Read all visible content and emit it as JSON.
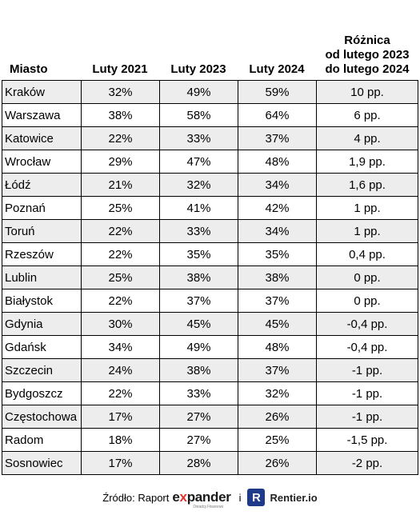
{
  "header": {
    "city": "Miasto",
    "col_2021": "Luty 2021",
    "col_2023": "Luty 2023",
    "col_2024": "Luty 2024",
    "diff_line1": "Różnica",
    "diff_line2": "od lutego 2023",
    "diff_line3": "do lutego 2024"
  },
  "rows": [
    {
      "city": "Kraków",
      "v2021": "32%",
      "v2023": "49%",
      "v2024": "59%",
      "diff": "10 pp."
    },
    {
      "city": "Warszawa",
      "v2021": "38%",
      "v2023": "58%",
      "v2024": "64%",
      "diff": "6 pp."
    },
    {
      "city": "Katowice",
      "v2021": "22%",
      "v2023": "33%",
      "v2024": "37%",
      "diff": "4 pp."
    },
    {
      "city": "Wrocław",
      "v2021": "29%",
      "v2023": "47%",
      "v2024": "48%",
      "diff": "1,9 pp."
    },
    {
      "city": "Łódź",
      "v2021": "21%",
      "v2023": "32%",
      "v2024": "34%",
      "diff": "1,6 pp."
    },
    {
      "city": "Poznań",
      "v2021": "25%",
      "v2023": "41%",
      "v2024": "42%",
      "diff": "1 pp."
    },
    {
      "city": "Toruń",
      "v2021": "22%",
      "v2023": "33%",
      "v2024": "34%",
      "diff": "1 pp."
    },
    {
      "city": "Rzeszów",
      "v2021": "22%",
      "v2023": "35%",
      "v2024": "35%",
      "diff": "0,4 pp."
    },
    {
      "city": "Lublin",
      "v2021": "25%",
      "v2023": "38%",
      "v2024": "38%",
      "diff": "0 pp."
    },
    {
      "city": "Białystok",
      "v2021": "22%",
      "v2023": "37%",
      "v2024": "37%",
      "diff": "0 pp."
    },
    {
      "city": "Gdynia",
      "v2021": "30%",
      "v2023": "45%",
      "v2024": "45%",
      "diff": "-0,4 pp."
    },
    {
      "city": "Gdańsk",
      "v2021": "34%",
      "v2023": "49%",
      "v2024": "48%",
      "diff": "-0,4 pp."
    },
    {
      "city": "Szczecin",
      "v2021": "24%",
      "v2023": "38%",
      "v2024": "37%",
      "diff": "-1 pp."
    },
    {
      "city": "Bydgoszcz",
      "v2021": "22%",
      "v2023": "33%",
      "v2024": "32%",
      "diff": "-1 pp."
    },
    {
      "city": "Częstochowa",
      "v2021": "17%",
      "v2023": "27%",
      "v2024": "26%",
      "diff": "-1 pp."
    },
    {
      "city": "Radom",
      "v2021": "18%",
      "v2023": "27%",
      "v2024": "25%",
      "diff": "-1,5 pp."
    },
    {
      "city": "Sosnowiec",
      "v2021": "17%",
      "v2023": "28%",
      "v2024": "26%",
      "diff": "-2 pp."
    }
  ],
  "footer": {
    "source_label": "Źródło: Raport",
    "expander_pre": "e",
    "expander_x": "x",
    "expander_post": "pander",
    "expander_sub": "Doradcy Finansowi",
    "conjunction": "i",
    "rentier_badge": "R",
    "rentier_name": "Rentier.io"
  },
  "colors": {
    "stripe": "#ededed",
    "expander_accent": "#e4322b",
    "rentier_badge": "#1e3a8a"
  }
}
